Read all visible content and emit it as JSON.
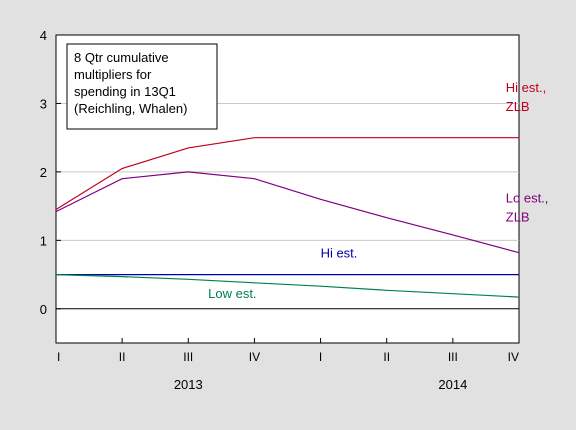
{
  "chart_data": {
    "type": "line",
    "title": "",
    "xlabel": "",
    "ylabel": "",
    "ylim": [
      -0.5,
      4
    ],
    "yticks": [
      0,
      1,
      2,
      3,
      4
    ],
    "grid": "horizontal gridlines at each y tick",
    "zero_line": true,
    "categories": [
      "2013Q1",
      "2013Q2",
      "2013Q3",
      "2013Q4",
      "2014Q1",
      "2014Q2",
      "2014Q3",
      "2014Q4"
    ],
    "x_tick_labels": [
      "I",
      "II",
      "III",
      "IV",
      "I",
      "II",
      "III",
      "IV"
    ],
    "x_year_labels": [
      {
        "label": "2013",
        "center_index": 2
      },
      {
        "label": "2014",
        "center_index": 6
      }
    ],
    "legend_box": {
      "lines": [
        "8 Qtr cumulative",
        "multipliers for",
        "spending in 13Q1",
        "(Reichling, Whalen)"
      ],
      "placement": "top-left"
    },
    "series": [
      {
        "name": "Hi est., ZLB",
        "label_lines": [
          "Hi est.,",
          "ZLB"
        ],
        "color": "#c0001a",
        "values": [
          1.45,
          2.05,
          2.35,
          2.5,
          2.5,
          2.5,
          2.5,
          2.5
        ]
      },
      {
        "name": "Lo est., ZLB",
        "label_lines": [
          "Lo est.,",
          "ZLB"
        ],
        "color": "#800080",
        "values": [
          1.42,
          1.9,
          2.0,
          1.9,
          1.6,
          1.33,
          1.08,
          0.82
        ]
      },
      {
        "name": "Hi est.",
        "label_lines": [
          "Hi est."
        ],
        "color": "#0000a8",
        "values": [
          0.5,
          0.5,
          0.5,
          0.5,
          0.5,
          0.5,
          0.5,
          0.5
        ]
      },
      {
        "name": "Low est.",
        "label_lines": [
          "Low est."
        ],
        "color": "#008050",
        "values": [
          0.5,
          0.47,
          0.43,
          0.38,
          0.33,
          0.27,
          0.22,
          0.17
        ]
      }
    ]
  }
}
